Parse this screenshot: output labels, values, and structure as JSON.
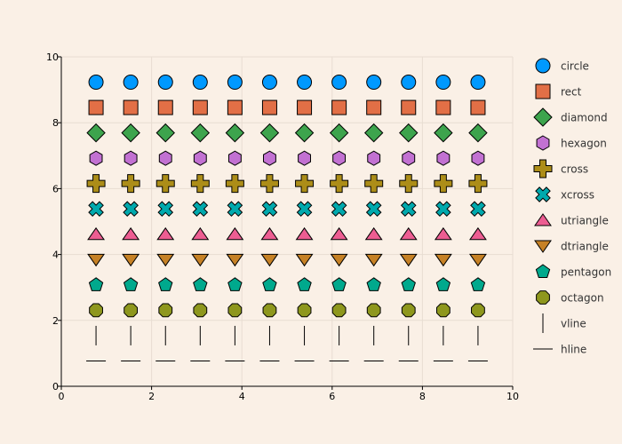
{
  "chart_data": {
    "type": "scatter",
    "title": "",
    "xlabel": "",
    "ylabel": "",
    "xlim": [
      0,
      10
    ],
    "ylim": [
      0,
      10
    ],
    "x_ticks": [
      "0",
      "2",
      "4",
      "6",
      "8",
      "10"
    ],
    "y_ticks": [
      "0",
      "2",
      "4",
      "6",
      "8",
      "10"
    ],
    "grid": true,
    "legend_position": "right",
    "x": [
      0.769,
      1.538,
      2.308,
      3.077,
      3.846,
      4.615,
      5.385,
      6.154,
      6.923,
      7.692,
      8.462,
      9.231
    ],
    "series": [
      {
        "name": "circle",
        "marker": "circle",
        "color": "#0099ff",
        "y": 9.231
      },
      {
        "name": "rect",
        "marker": "rect",
        "color": "#e26f46",
        "y": 8.462
      },
      {
        "name": "diamond",
        "marker": "diamond",
        "color": "#3da44d",
        "y": 7.692
      },
      {
        "name": "hexagon",
        "marker": "hexagon",
        "color": "#c271d2",
        "y": 6.923
      },
      {
        "name": "cross",
        "marker": "cross",
        "color": "#ac8d18",
        "y": 6.154
      },
      {
        "name": "xcross",
        "marker": "xcross",
        "color": "#00a9ad",
        "y": 5.385
      },
      {
        "name": "utriangle",
        "marker": "utriangle",
        "color": "#ed5d92",
        "y": 4.615
      },
      {
        "name": "dtriangle",
        "marker": "dtriangle",
        "color": "#c68125",
        "y": 3.846
      },
      {
        "name": "pentagon",
        "marker": "pentagon",
        "color": "#00a98d",
        "y": 3.077
      },
      {
        "name": "octagon",
        "marker": "octagon",
        "color": "#8e971d",
        "y": 2.308
      },
      {
        "name": "vline",
        "marker": "vline",
        "color": "#000000",
        "y": 1.538
      },
      {
        "name": "hline",
        "marker": "hline",
        "color": "#000000",
        "y": 0.769
      }
    ]
  }
}
